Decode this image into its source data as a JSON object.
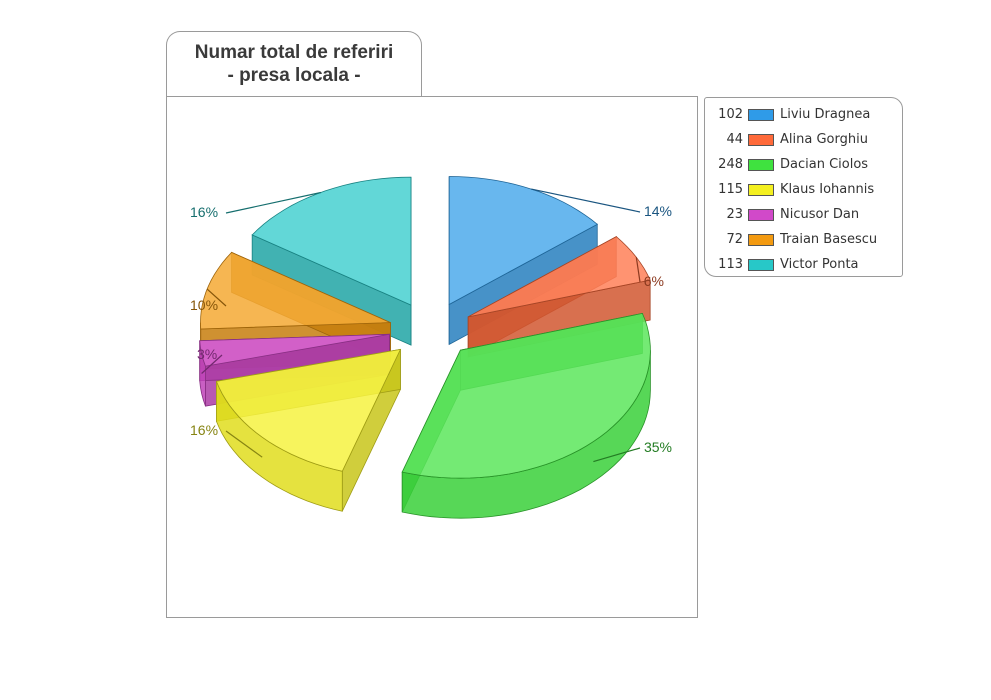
{
  "chart_data": {
    "type": "pie",
    "title": "Numar total de referiri",
    "subtitle": "- presa locala -",
    "legend_position": "right",
    "slices": [
      {
        "name": "Liviu Dragnea",
        "value": 102,
        "percent": "14%",
        "color": "#2f9be8"
      },
      {
        "name": "Alina Gorghiu",
        "value": 44,
        "percent": "6%",
        "color": "#ff6a3a"
      },
      {
        "name": "Dacian Ciolos",
        "value": 248,
        "percent": "35%",
        "color": "#3fe23f"
      },
      {
        "name": "Klaus Iohannis",
        "value": 115,
        "percent": "16%",
        "color": "#f4f020"
      },
      {
        "name": "Nicusor Dan",
        "value": 23,
        "percent": "3%",
        "color": "#d149c9"
      },
      {
        "name": "Traian Basescu",
        "value": 72,
        "percent": "10%",
        "color": "#f39a10"
      },
      {
        "name": "Victor Ponta",
        "value": 113,
        "percent": "16%",
        "color": "#27c8c8"
      }
    ]
  }
}
